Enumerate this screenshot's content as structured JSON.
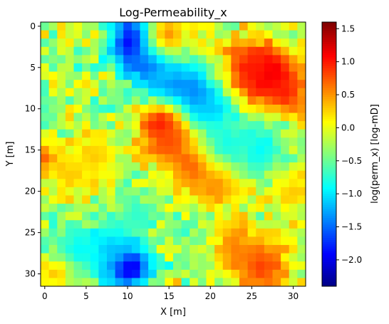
{
  "chart_data": {
    "type": "heatmap",
    "title": "Log-Permeability_x",
    "xlabel": "X [m]",
    "ylabel": "Y [m]",
    "colorbar_label": "log(perm_x) [log-mD]",
    "colormap": "jet",
    "grid": false,
    "nx": 32,
    "ny": 32,
    "vmin": -2.4,
    "vmax": 1.6,
    "x_ticks": [
      "0",
      "5",
      "10",
      "15",
      "20",
      "25",
      "30"
    ],
    "y_ticks": [
      "0",
      "5",
      "10",
      "15",
      "20",
      "25",
      "30"
    ],
    "colorbar_ticks": [
      "1.5",
      "1.0",
      "0.5",
      "0.0",
      "−0.5",
      "−1.0",
      "−1.5",
      "−2.0"
    ],
    "colorbar_tick_values": [
      1.5,
      1.0,
      0.5,
      0.0,
      -0.5,
      -1.0,
      -1.5,
      -2.0
    ],
    "features": [
      {
        "x": 11,
        "y": 2,
        "value": -2.3,
        "radius": 2.2
      },
      {
        "x": 13,
        "y": 4,
        "value": -1.6,
        "radius": 2.5
      },
      {
        "x": 18,
        "y": 9,
        "value": -2.0,
        "radius": 2.0
      },
      {
        "x": 16,
        "y": 8,
        "value": -1.4,
        "radius": 2.5
      },
      {
        "x": 20,
        "y": 10,
        "value": -1.2,
        "radius": 2.0
      },
      {
        "x": 27,
        "y": 6,
        "value": 1.6,
        "radius": 2.2
      },
      {
        "x": 25,
        "y": 5,
        "value": 1.0,
        "radius": 2.5
      },
      {
        "x": 29,
        "y": 8,
        "value": 1.0,
        "radius": 2.0
      },
      {
        "x": 14,
        "y": 12,
        "value": 1.2,
        "radius": 1.8
      },
      {
        "x": 15,
        "y": 14,
        "value": 0.8,
        "radius": 2.2
      },
      {
        "x": 18,
        "y": 17,
        "value": 0.8,
        "radius": 2.0
      },
      {
        "x": 21,
        "y": 19,
        "value": 0.6,
        "radius": 2.2
      },
      {
        "x": 10,
        "y": 29,
        "value": -2.3,
        "radius": 2.0
      },
      {
        "x": 8,
        "y": 27,
        "value": -1.2,
        "radius": 2.0
      },
      {
        "x": 26,
        "y": 29,
        "value": 0.9,
        "radius": 2.5
      },
      {
        "x": 23,
        "y": 27,
        "value": 0.6,
        "radius": 2.0
      },
      {
        "x": 0,
        "y": 16,
        "value": 0.8,
        "radius": 1.2
      },
      {
        "x": 26,
        "y": 15,
        "value": -0.9,
        "radius": 2.5
      },
      {
        "x": 22,
        "y": 14,
        "value": -0.8,
        "radius": 2.0
      },
      {
        "x": 4,
        "y": 27,
        "value": -0.9,
        "radius": 2.2
      },
      {
        "x": 11,
        "y": 23,
        "value": -0.7,
        "radius": 2.0
      },
      {
        "x": 3,
        "y": 18,
        "value": 0.3,
        "radius": 2.0
      },
      {
        "x": 6,
        "y": 16,
        "value": 0.3,
        "radius": 2.0
      },
      {
        "x": 30,
        "y": 20,
        "value": 0.3,
        "radius": 2.0
      },
      {
        "x": 1,
        "y": 30,
        "value": 0.3,
        "radius": 1.5
      },
      {
        "x": 15,
        "y": 1,
        "value": 0.5,
        "radius": 2.0
      }
    ]
  }
}
